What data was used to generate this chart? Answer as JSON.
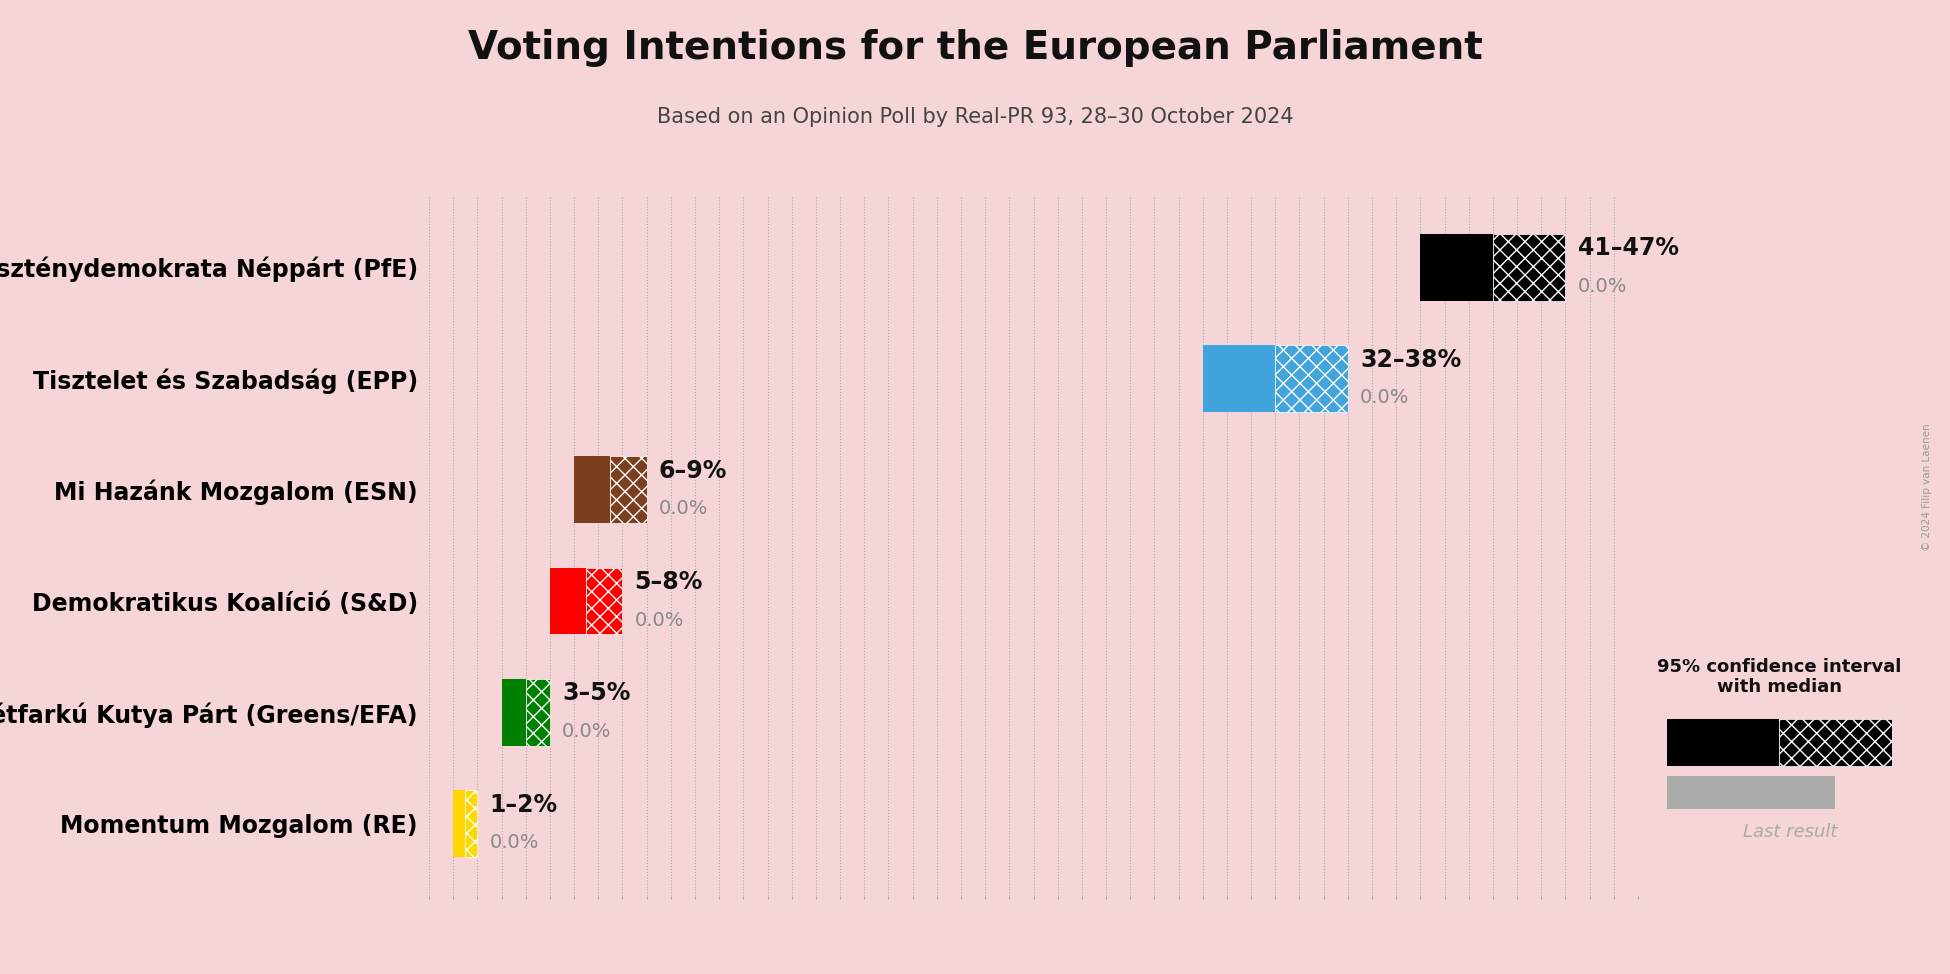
{
  "title": "Voting Intentions for the European Parliament",
  "subtitle": "Based on an Opinion Poll by Real-PR 93, 28–30 October 2024",
  "copyright": "© 2024 Filip van Laenen",
  "background_color": "#f5d5d8",
  "parties": [
    "Fidesz–Kereszténydemokrata Néppárt (PfE)",
    "Tisztelet és Szabadság (EPP)",
    "Mi Hazánk Mozgalom (ESN)",
    "Demokratikus Koalíció (S&D)",
    "Magyar Kétfarkú Kutya Párt (Greens/EFA)",
    "Momentum Mozgalom (RE)"
  ],
  "low": [
    41,
    32,
    6,
    5,
    3,
    1
  ],
  "high": [
    47,
    38,
    9,
    8,
    5,
    2
  ],
  "median": [
    44,
    35,
    7.5,
    6.5,
    4,
    1.5
  ],
  "last_result": [
    0.0,
    0.0,
    0.0,
    0.0,
    0.0,
    0.0
  ],
  "colors": [
    "#000000",
    "#42a4dc",
    "#7b3f1e",
    "#ff0000",
    "#008000",
    "#ffd700"
  ],
  "range_labels": [
    "41–47%",
    "32–38%",
    "6–9%",
    "5–8%",
    "3–5%",
    "1–2%"
  ],
  "last_result_labels": [
    "0.0%",
    "0.0%",
    "0.0%",
    "0.0%",
    "0.0%",
    "0.0%"
  ],
  "xlim": [
    0,
    50
  ],
  "bar_height": 0.6,
  "hatch_pattern": "xx",
  "title_fontsize": 28,
  "subtitle_fontsize": 15,
  "label_fontsize": 17,
  "annot_fontsize": 17,
  "legend_text": "95% confidence interval\nwith median",
  "last_result_text": "Last result"
}
